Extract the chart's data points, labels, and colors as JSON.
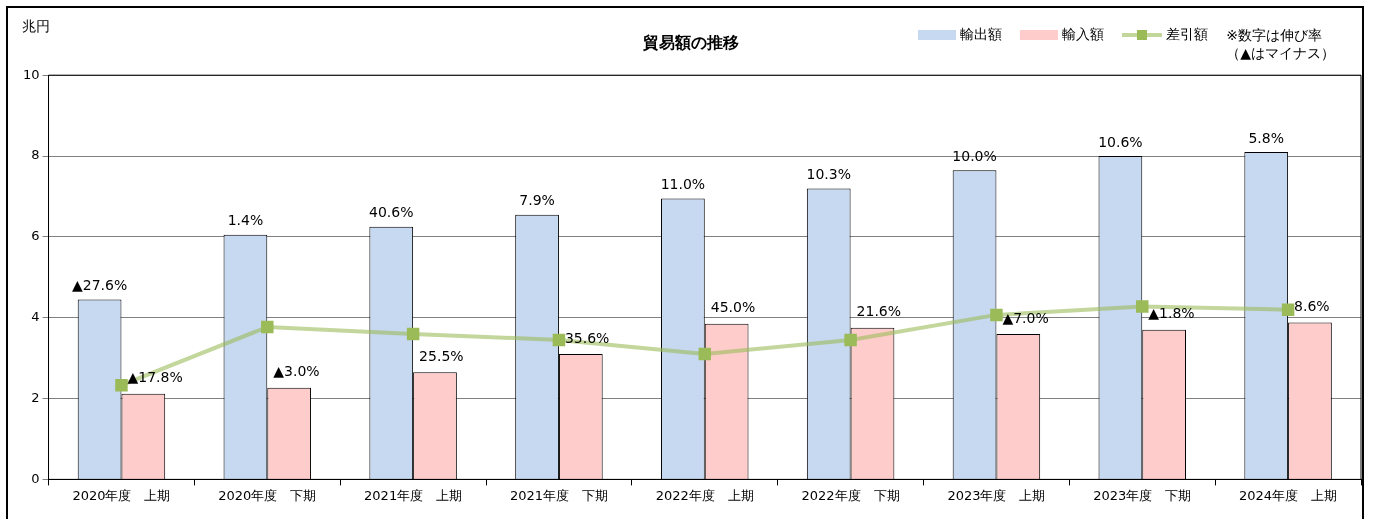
{
  "chart_data": {
    "type": "bar",
    "title": "貿易額の推移",
    "ylabel": "兆円",
    "categories": [
      "2020年度　上期",
      "2020年度　下期",
      "2021年度　上期",
      "2021年度　下期",
      "2022年度　上期",
      "2022年度　下期",
      "2023年度　上期",
      "2023年度　下期",
      "2024年度　上期"
    ],
    "series": [
      {
        "name": "輸出額",
        "color": "#c6d9f1",
        "values": [
          4.45,
          6.05,
          6.25,
          6.55,
          6.95,
          7.2,
          7.65,
          8.0,
          8.1
        ]
      },
      {
        "name": "輸入額",
        "color": "#ffcccc",
        "values": [
          2.12,
          2.27,
          2.65,
          3.1,
          3.85,
          3.75,
          3.6,
          3.7,
          3.88
        ]
      },
      {
        "name": "差引額",
        "type": "line",
        "color": "#9bbb59",
        "values": [
          2.33,
          3.77,
          3.6,
          3.45,
          3.1,
          3.45,
          4.07,
          4.28,
          4.2
        ]
      }
    ],
    "ylim": [
      0,
      10
    ],
    "yticks": [
      0,
      2,
      4,
      6,
      8,
      10
    ],
    "grid": "y",
    "legend": "top right",
    "marker": "square",
    "line_style": "solid",
    "annotations": [
      "※数字は伸び率",
      "（▲はマイナス）",
      {
        "text": "▲27.6%",
        "x": "2020年度　上期",
        "y": 4.45
      },
      {
        "text": "1.4%",
        "x": "2020年度　下期",
        "y": 6.05
      },
      {
        "text": "40.6%",
        "x": "2021年度　上期",
        "y": 6.25
      },
      {
        "text": "7.9%",
        "x": "2021年度　下期",
        "y": 6.55
      },
      {
        "text": "11.0%",
        "x": "2022年度　上期",
        "y": 6.95
      },
      {
        "text": "10.3%",
        "x": "2022年度　下期",
        "y": 7.2
      },
      {
        "text": "10.0%",
        "x": "2023年度　上期",
        "y": 7.65
      },
      {
        "text": "10.6%",
        "x": "2023年度　下期",
        "y": 8.0
      },
      {
        "text": "5.8%",
        "x": "2024年度　上期",
        "y": 8.1
      },
      {
        "text": "▲17.8%",
        "x": "2020年度　上期",
        "y": 2.12
      },
      {
        "text": "▲3.0%",
        "x": "2020年度　下期",
        "y": 2.27
      },
      {
        "text": "25.5%",
        "x": "2021年度　上期",
        "y": 2.65
      },
      {
        "text": "35.6%",
        "x": "2021年度　下期",
        "y": 3.1
      },
      {
        "text": "45.0%",
        "x": "2022年度　上期",
        "y": 3.85
      },
      {
        "text": "21.6%",
        "x": "2022年度　下期",
        "y": 3.75
      },
      {
        "text": "▲7.0%",
        "x": "2023年度　上期",
        "y": 3.6
      },
      {
        "text": "▲1.8%",
        "x": "2023年度　下期",
        "y": 3.7
      },
      {
        "text": "8.6%",
        "x": "2024年度　上期",
        "y": 3.88
      }
    ]
  }
}
